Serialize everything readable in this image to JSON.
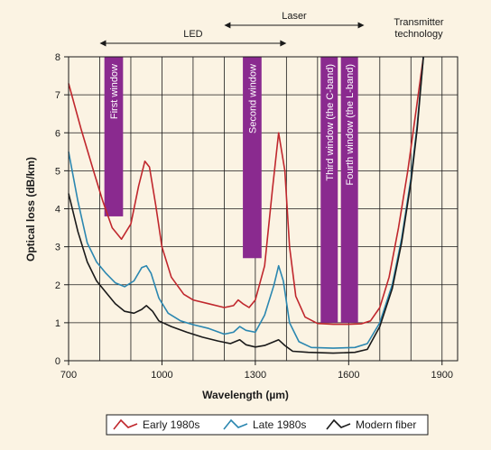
{
  "chart_data": {
    "type": "line",
    "xlabel": "Wavelength (µm)",
    "ylabel": "Optical loss (dB/km)",
    "xlim": [
      700,
      1950
    ],
    "ylim": [
      0,
      8
    ],
    "xticks": [
      700,
      1000,
      1300,
      1600,
      1900
    ],
    "yticks": [
      0,
      1,
      2,
      3,
      4,
      5,
      6,
      7,
      8
    ],
    "grid": true,
    "legend_position": "bottom",
    "series": [
      {
        "name": "Early 1980s",
        "color": "#c0272d",
        "points": [
          [
            700,
            7.3
          ],
          [
            740,
            6.1
          ],
          [
            780,
            5.0
          ],
          [
            810,
            4.2
          ],
          [
            840,
            3.5
          ],
          [
            870,
            3.2
          ],
          [
            900,
            3.6
          ],
          [
            925,
            4.6
          ],
          [
            945,
            5.25
          ],
          [
            960,
            5.1
          ],
          [
            980,
            4.1
          ],
          [
            1000,
            3.0
          ],
          [
            1030,
            2.2
          ],
          [
            1070,
            1.75
          ],
          [
            1100,
            1.6
          ],
          [
            1150,
            1.5
          ],
          [
            1200,
            1.4
          ],
          [
            1230,
            1.45
          ],
          [
            1245,
            1.6
          ],
          [
            1260,
            1.5
          ],
          [
            1280,
            1.4
          ],
          [
            1300,
            1.6
          ],
          [
            1330,
            2.5
          ],
          [
            1355,
            4.5
          ],
          [
            1375,
            6.0
          ],
          [
            1395,
            5.0
          ],
          [
            1410,
            3.0
          ],
          [
            1430,
            1.7
          ],
          [
            1460,
            1.15
          ],
          [
            1500,
            0.98
          ],
          [
            1550,
            0.96
          ],
          [
            1600,
            0.96
          ],
          [
            1640,
            0.97
          ],
          [
            1670,
            1.05
          ],
          [
            1700,
            1.4
          ],
          [
            1730,
            2.2
          ],
          [
            1760,
            3.5
          ],
          [
            1790,
            5.0
          ],
          [
            1820,
            6.8
          ],
          [
            1840,
            8.0
          ]
        ]
      },
      {
        "name": "Late 1980s",
        "color": "#2b87b0",
        "points": [
          [
            700,
            5.5
          ],
          [
            730,
            4.2
          ],
          [
            760,
            3.1
          ],
          [
            790,
            2.6
          ],
          [
            820,
            2.3
          ],
          [
            850,
            2.05
          ],
          [
            880,
            1.95
          ],
          [
            910,
            2.1
          ],
          [
            935,
            2.45
          ],
          [
            950,
            2.5
          ],
          [
            965,
            2.3
          ],
          [
            990,
            1.65
          ],
          [
            1020,
            1.25
          ],
          [
            1060,
            1.05
          ],
          [
            1100,
            0.95
          ],
          [
            1150,
            0.85
          ],
          [
            1200,
            0.7
          ],
          [
            1230,
            0.75
          ],
          [
            1250,
            0.9
          ],
          [
            1270,
            0.8
          ],
          [
            1300,
            0.75
          ],
          [
            1330,
            1.2
          ],
          [
            1360,
            2.0
          ],
          [
            1375,
            2.5
          ],
          [
            1390,
            2.1
          ],
          [
            1410,
            1.0
          ],
          [
            1440,
            0.5
          ],
          [
            1480,
            0.35
          ],
          [
            1550,
            0.33
          ],
          [
            1620,
            0.35
          ],
          [
            1660,
            0.45
          ],
          [
            1700,
            1.0
          ],
          [
            1740,
            2.0
          ],
          [
            1770,
            3.2
          ],
          [
            1800,
            4.8
          ],
          [
            1820,
            6.2
          ],
          [
            1840,
            8.0
          ]
        ]
      },
      {
        "name": "Modern fiber",
        "color": "#1a1a1a",
        "points": [
          [
            700,
            4.4
          ],
          [
            730,
            3.4
          ],
          [
            760,
            2.6
          ],
          [
            790,
            2.1
          ],
          [
            820,
            1.8
          ],
          [
            850,
            1.5
          ],
          [
            880,
            1.3
          ],
          [
            910,
            1.25
          ],
          [
            935,
            1.35
          ],
          [
            950,
            1.45
          ],
          [
            970,
            1.3
          ],
          [
            990,
            1.05
          ],
          [
            1030,
            0.9
          ],
          [
            1080,
            0.75
          ],
          [
            1130,
            0.62
          ],
          [
            1180,
            0.52
          ],
          [
            1220,
            0.45
          ],
          [
            1250,
            0.55
          ],
          [
            1270,
            0.42
          ],
          [
            1300,
            0.36
          ],
          [
            1330,
            0.4
          ],
          [
            1360,
            0.5
          ],
          [
            1375,
            0.55
          ],
          [
            1395,
            0.4
          ],
          [
            1420,
            0.25
          ],
          [
            1470,
            0.22
          ],
          [
            1550,
            0.2
          ],
          [
            1620,
            0.22
          ],
          [
            1660,
            0.3
          ],
          [
            1700,
            0.9
          ],
          [
            1740,
            1.9
          ],
          [
            1770,
            3.1
          ],
          [
            1800,
            4.7
          ],
          [
            1820,
            6.1
          ],
          [
            1840,
            8.0
          ]
        ]
      }
    ],
    "bands": [
      {
        "label": "First window",
        "x_from": 815,
        "x_to": 875,
        "y_from": 3.8,
        "y_to": 8
      },
      {
        "label": "Second window",
        "x_from": 1260,
        "x_to": 1320,
        "y_from": 2.7,
        "y_to": 8
      },
      {
        "label": "Third window (the C-band)",
        "x_from": 1510,
        "x_to": 1565,
        "y_from": 1.0,
        "y_to": 8
      },
      {
        "label": "Fourth window (the L-band)",
        "x_from": 1575,
        "x_to": 1630,
        "y_from": 1.0,
        "y_to": 8
      }
    ],
    "band_color": "#8a2a8f",
    "annotations": [
      {
        "label": "LED",
        "x_from": 800,
        "x_to": 1400
      },
      {
        "label": "Laser",
        "x_from": 1200,
        "x_to": 1650
      }
    ],
    "transmitter_label": [
      "Transmitter",
      "technology"
    ]
  }
}
